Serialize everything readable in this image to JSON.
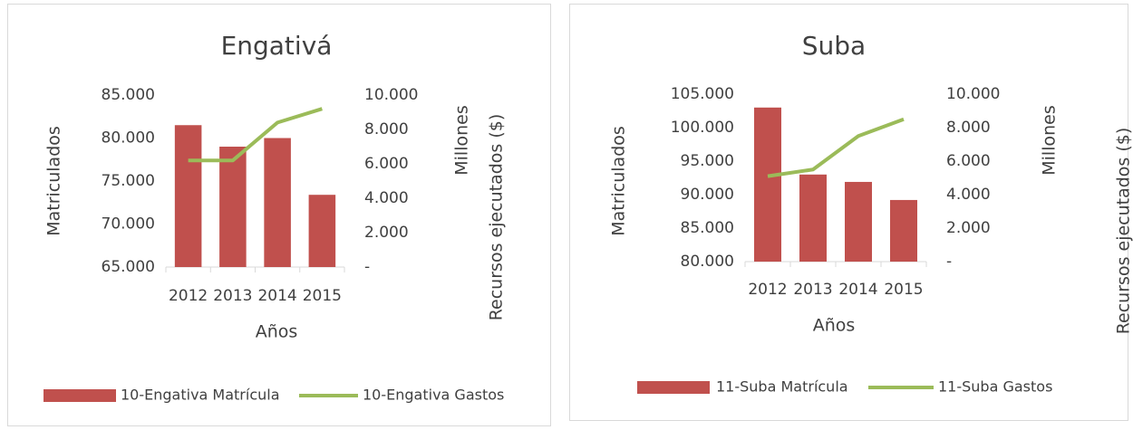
{
  "chart_data": [
    {
      "type": "bar",
      "title": "Engativá",
      "categories": [
        "2012",
        "2013",
        "2014",
        "2015"
      ],
      "x_label": "Años",
      "y_label": "Matriculados",
      "y2_label": "Millones",
      "y2_label_2": "Recursos ejecutados ($)",
      "series": [
        {
          "name": "10-Engativa Matrícula",
          "type": "bar",
          "color": "#c0504d",
          "values": [
            81500,
            79000,
            80000,
            73400
          ]
        },
        {
          "name": "10-Engativa Gastos",
          "type": "line",
          "axis": "y2",
          "color": "#9bbb59",
          "values": [
            6200,
            6200,
            8400,
            9200
          ]
        }
      ],
      "ylim": [
        65000,
        85000
      ],
      "yticks": [
        {
          "value": 65000,
          "label": "65.000"
        },
        {
          "value": 70000,
          "label": "70.000"
        },
        {
          "value": 75000,
          "label": "75.000"
        },
        {
          "value": 80000,
          "label": "80.000"
        },
        {
          "value": 85000,
          "label": "85.000"
        }
      ],
      "y2lim": [
        0,
        10000
      ],
      "y2ticks": [
        {
          "value": 0,
          "label": "-"
        },
        {
          "value": 2000,
          "label": "2.000"
        },
        {
          "value": 4000,
          "label": "4.000"
        },
        {
          "value": 6000,
          "label": "6.000"
        },
        {
          "value": 8000,
          "label": "8.000"
        },
        {
          "value": 10000,
          "label": "10.000"
        }
      ],
      "grid": false,
      "legend": "bottom"
    },
    {
      "type": "bar",
      "title": "Suba",
      "categories": [
        "2012",
        "2013",
        "2014",
        "2015"
      ],
      "x_label": "Años",
      "y_label": "Matriculados",
      "y2_label": "Millones",
      "y2_label_2": "Recursos ejecutados ($)",
      "series": [
        {
          "name": "11-Suba Matrícula",
          "type": "bar",
          "color": "#c0504d",
          "values": [
            103000,
            93000,
            91900,
            89200
          ]
        },
        {
          "name": "11-Suba Gastos",
          "type": "line",
          "axis": "y2",
          "color": "#9bbb59",
          "values": [
            5100,
            5500,
            7500,
            8500
          ]
        }
      ],
      "ylim": [
        80000,
        105000
      ],
      "yticks": [
        {
          "value": 80000,
          "label": "80.000"
        },
        {
          "value": 85000,
          "label": "85.000"
        },
        {
          "value": 90000,
          "label": "90.000"
        },
        {
          "value": 95000,
          "label": "95.000"
        },
        {
          "value": 100000,
          "label": "100.000"
        },
        {
          "value": 105000,
          "label": "105.000"
        }
      ],
      "y2lim": [
        0,
        10000
      ],
      "y2ticks": [
        {
          "value": 0,
          "label": "-"
        },
        {
          "value": 2000,
          "label": "2.000"
        },
        {
          "value": 4000,
          "label": "4.000"
        },
        {
          "value": 6000,
          "label": "6.000"
        },
        {
          "value": 8000,
          "label": "8.000"
        },
        {
          "value": 10000,
          "label": "10.000"
        }
      ],
      "grid": false,
      "legend": "bottom"
    }
  ]
}
